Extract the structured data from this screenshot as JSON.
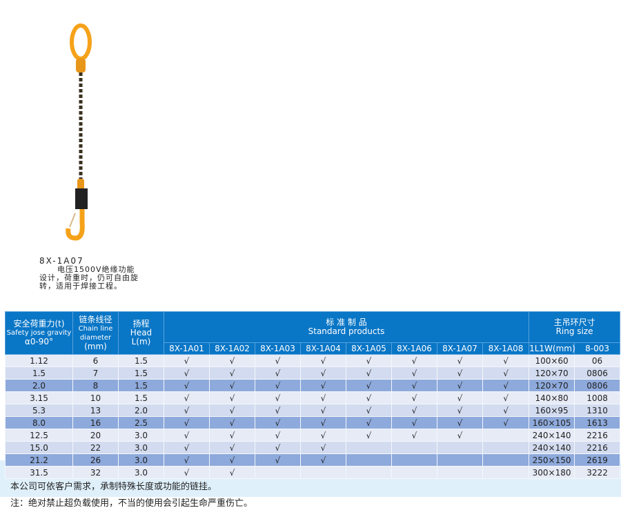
{
  "product": {
    "model": "8X-1A07",
    "description": "电压1500V绝缘功能设计，荷重时，仍可自由旋转，适用于焊接工程。"
  },
  "table": {
    "headers": {
      "load_cn": "安全荷重力(t)",
      "load_en": "Safety jose gravity",
      "load_angle": "α0-90°",
      "chain_cn": "链条线径",
      "chain_en": "Chain line diameter",
      "chain_unit": "(mm)",
      "head_cn": "扬程",
      "head_en": "Head",
      "head_unit": "L(m)",
      "std_cn": "标 准 制 品",
      "std_en": "Standard products",
      "ring_cn": "主吊环尺寸",
      "ring_en": "Ring size",
      "products": [
        "8X-1A01",
        "8X-1A02",
        "8X-1A03",
        "8X-1A04",
        "8X-1A05",
        "8X-1A06",
        "8X-1A07",
        "8X-1A08"
      ],
      "ring_dim": "1L1W(mm)",
      "ring_code": "8-003"
    },
    "check_mark": "√",
    "rows": [
      {
        "load": "1.12",
        "chain": "6",
        "head": "1.5",
        "checks": 8,
        "ring": "100×60",
        "code": "06"
      },
      {
        "load": "1.5",
        "chain": "7",
        "head": "1.5",
        "checks": 8,
        "ring": "120×70",
        "code": "0806"
      },
      {
        "load": "2.0",
        "chain": "8",
        "head": "1.5",
        "checks": 8,
        "ring": "120×70",
        "code": "0806"
      },
      {
        "load": "3.15",
        "chain": "10",
        "head": "1.5",
        "checks": 8,
        "ring": "140×80",
        "code": "1008"
      },
      {
        "load": "5.3",
        "chain": "13",
        "head": "2.0",
        "checks": 8,
        "ring": "160×95",
        "code": "1310"
      },
      {
        "load": "8.0",
        "chain": "16",
        "head": "2.5",
        "checks": 8,
        "ring": "160×105",
        "code": "1613"
      },
      {
        "load": "12.5",
        "chain": "20",
        "head": "3.0",
        "checks": 7,
        "ring": "240×140",
        "code": "2216"
      },
      {
        "load": "15.0",
        "chain": "22",
        "head": "3.0",
        "checks": 4,
        "ring": "240×140",
        "code": "2216"
      },
      {
        "load": "21.2",
        "chain": "26",
        "head": "3.0",
        "checks": 4,
        "ring": "250×150",
        "code": "2619"
      },
      {
        "load": "31.5",
        "chain": "32",
        "head": "3.0",
        "checks": 2,
        "ring": "300×180",
        "code": "3222"
      }
    ]
  },
  "notes": [
    "本公司可依客户需求，承制特殊长度或功能的链挂。",
    "注：绝对禁止超负载使用，不当的使用会引起生命严重伤亡。"
  ],
  "colors": {
    "header": "#0a76c6",
    "row_light": "#e6ebf6",
    "row_mid": "#d2dbef",
    "row_dark": "#8eaadc",
    "chain_orange": "#f5a21a"
  }
}
